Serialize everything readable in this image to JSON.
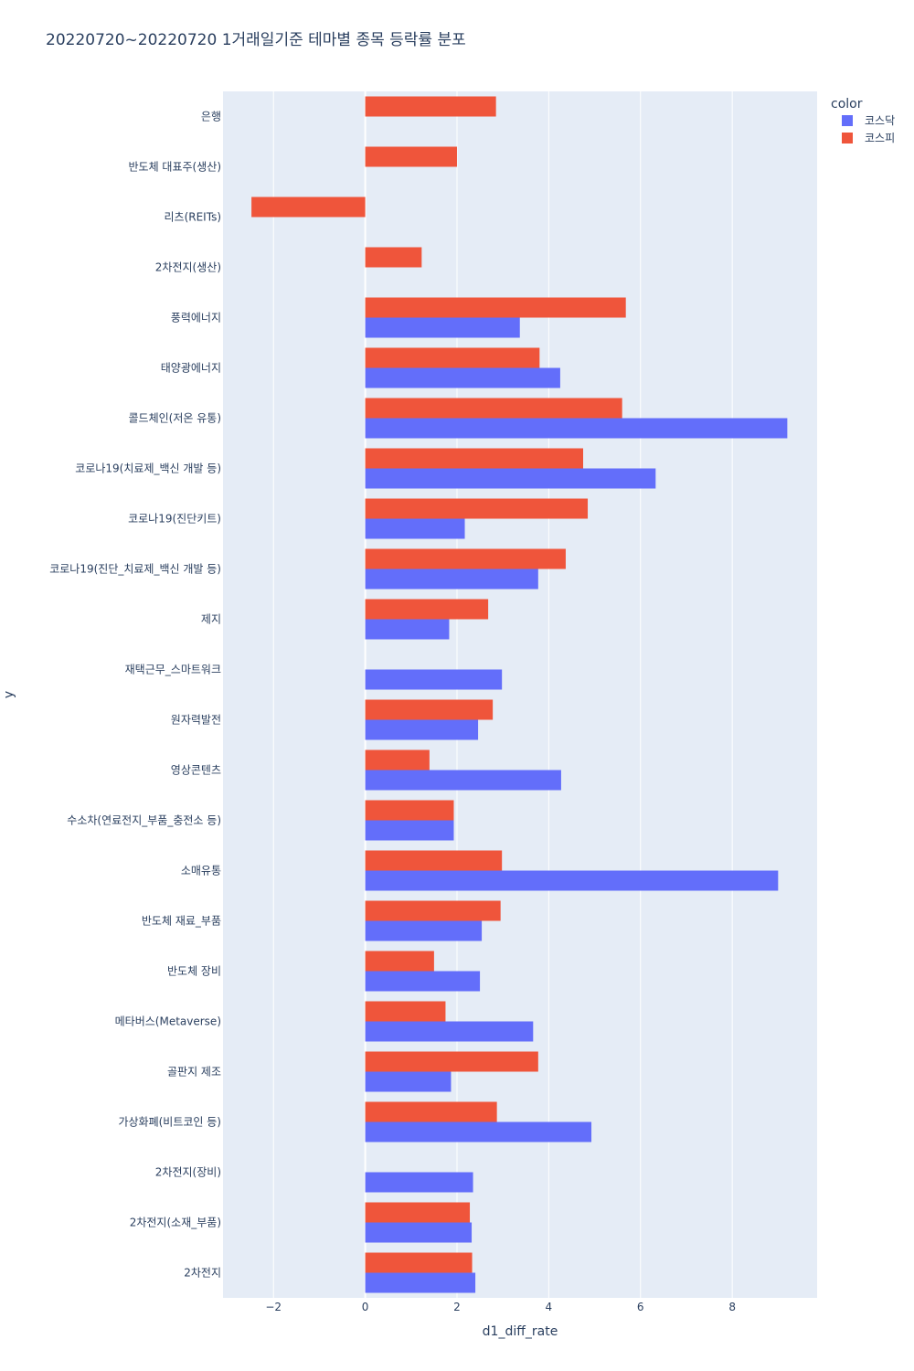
{
  "chart_data": {
    "type": "bar",
    "orientation": "horizontal",
    "title": "20220720~20220720 1거래일기준 테마별 종목 등락률 분포",
    "xlabel": "d1_diff_rate",
    "ylabel": "y",
    "xlim": [
      -3.1,
      9.85
    ],
    "xticks": [
      -2,
      0,
      2,
      4,
      6,
      8
    ],
    "xtick_labels": [
      "−2",
      "0",
      "2",
      "4",
      "6",
      "8"
    ],
    "grid": true,
    "legend": {
      "title": "color",
      "position": "top-right"
    },
    "categories": [
      "은행",
      "반도체 대표주(생산)",
      "리츠(REITs)",
      "2차전지(생산)",
      "풍력에너지",
      "태양광에너지",
      "콜드체인(저온 유통)",
      "코로나19(치료제_백신 개발 등)",
      "코로나19(진단키트)",
      "코로나19(진단_치료제_백신 개발 등)",
      "제지",
      "재택근무_스마트워크",
      "원자력발전",
      "영상콘텐츠",
      "수소차(연료전지_부품_충전소 등)",
      "소매유통",
      "반도체 재료_부품",
      "반도체 장비",
      "메타버스(Metaverse)",
      "골판지 제조",
      "가상화폐(비트코인 등)",
      "2차전지(장비)",
      "2차전지(소재_부품)",
      "2차전지"
    ],
    "series": [
      {
        "name": "코스닥",
        "color": "#636efa",
        "values": [
          null,
          null,
          null,
          null,
          3.37,
          4.25,
          9.2,
          6.33,
          2.17,
          3.77,
          1.83,
          2.98,
          2.46,
          4.27,
          1.93,
          9.0,
          2.54,
          2.5,
          3.66,
          1.87,
          4.93,
          2.35,
          2.32,
          2.4
        ]
      },
      {
        "name": "코스피",
        "color": "#ef553b",
        "values": [
          2.85,
          2.0,
          -2.48,
          1.23,
          5.68,
          3.8,
          5.6,
          4.75,
          4.85,
          4.37,
          2.68,
          null,
          2.78,
          1.4,
          1.93,
          2.98,
          2.95,
          1.5,
          1.75,
          3.77,
          2.87,
          null,
          2.28,
          2.33
        ]
      }
    ]
  }
}
